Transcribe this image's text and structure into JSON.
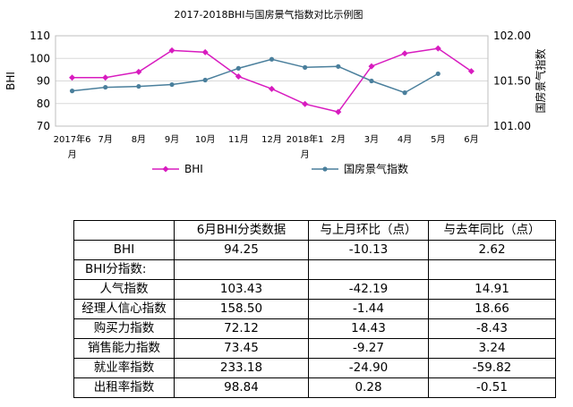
{
  "chart_data": {
    "type": "line",
    "title": "2017-2018BHI与国房景气指数对比示例图",
    "ylabel_left": "BHI",
    "ylabel_right": "国房景气指数",
    "ylim_left": [
      70,
      110
    ],
    "yticks_left": [
      "70",
      "80",
      "90",
      "100",
      "110"
    ],
    "ylim_right": [
      101.0,
      102.0
    ],
    "yticks_right": [
      "101.00",
      "101.50",
      "102.00"
    ],
    "categories": [
      [
        "2017年6",
        "月"
      ],
      [
        "7月"
      ],
      [
        "8月"
      ],
      [
        "9月"
      ],
      [
        "10月"
      ],
      [
        "11月"
      ],
      [
        "12月"
      ],
      [
        "2018年1",
        "月"
      ],
      [
        "2月"
      ],
      [
        "3月"
      ],
      [
        "4月"
      ],
      [
        "5月"
      ],
      [
        "6月"
      ]
    ],
    "series": [
      {
        "name": "BHI",
        "axis": "left",
        "color": "#d81bbf",
        "marker": "diamond",
        "values": [
          91.5,
          91.5,
          94,
          103.5,
          102.7,
          92,
          86.5,
          79.8,
          76.3,
          96.5,
          102.2,
          104.4,
          94.3
        ]
      },
      {
        "name": "国房景气指数",
        "axis": "right",
        "color": "#4a7f9c",
        "marker": "circle",
        "values": [
          101.39,
          101.43,
          101.44,
          101.46,
          101.51,
          101.64,
          101.74,
          101.65,
          101.66,
          101.5,
          101.37,
          101.58,
          null
        ]
      }
    ],
    "legend_position": "bottom"
  },
  "table": {
    "headers": [
      "",
      "6月BHI分类数据",
      "与上月环比（点）",
      "与去年同比（点）"
    ],
    "rows": [
      {
        "name": "BHI",
        "v1": "94.25",
        "v2": "-10.13",
        "v3": "2.62",
        "section": false
      },
      {
        "name": "BHI分指数:",
        "v1": "",
        "v2": "",
        "v3": "",
        "section": true
      },
      {
        "name": "人气指数",
        "v1": "103.43",
        "v2": "-42.19",
        "v3": "14.91",
        "section": false
      },
      {
        "name": "经理人信心指数",
        "v1": "158.50",
        "v2": "-1.44",
        "v3": "18.66",
        "section": false
      },
      {
        "name": "购买力指数",
        "v1": "72.12",
        "v2": "14.43",
        "v3": "-8.43",
        "section": false
      },
      {
        "name": "销售能力指数",
        "v1": "73.45",
        "v2": "-9.27",
        "v3": "3.24",
        "section": false
      },
      {
        "name": "就业率指数",
        "v1": "233.18",
        "v2": "-24.90",
        "v3": "-59.82",
        "section": false
      },
      {
        "name": "出租率指数",
        "v1": "98.84",
        "v2": "0.28",
        "v3": "-0.51",
        "section": false
      }
    ]
  }
}
